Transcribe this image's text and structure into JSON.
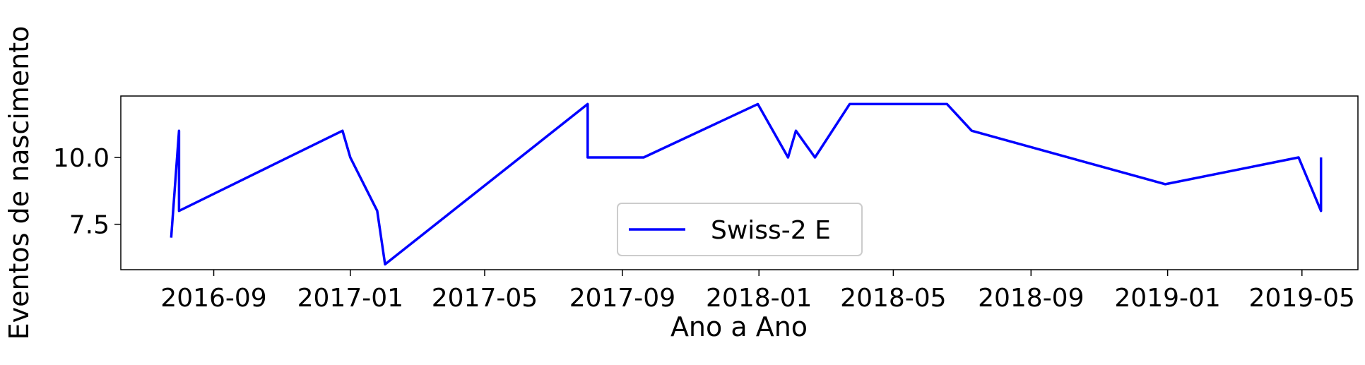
{
  "chart_data": {
    "type": "line",
    "xlabel": "Ano a Ano",
    "ylabel": "Eventos de nascimento",
    "xlim": [
      "2016-06-10",
      "2019-06-20"
    ],
    "ylim": [
      5.8,
      12.3
    ],
    "x_ticks": [
      "2016-09",
      "2017-01",
      "2017-05",
      "2017-09",
      "2018-01",
      "2018-05",
      "2018-09",
      "2019-01",
      "2019-05"
    ],
    "y_ticks": [
      7.5,
      10.0
    ],
    "y_tick_labels": [
      "7.5",
      "10.0"
    ],
    "grid": false,
    "legend": {
      "position": "lower-center"
    },
    "series": [
      {
        "name": "Swiss-2 E",
        "color": "#0000ff",
        "x": [
          "2016-07-25",
          "2016-08-01",
          "2016-08-01",
          "2016-12-25",
          "2017-01-01",
          "2017-01-25",
          "2017-02-01",
          "2017-08-01",
          "2017-08-01",
          "2017-09-20",
          "2017-12-31",
          "2018-01-27",
          "2018-02-03",
          "2018-02-20",
          "2018-03-23",
          "2018-06-18",
          "2018-07-10",
          "2018-12-30",
          "2019-04-28",
          "2019-05-18",
          "2019-05-18"
        ],
        "y": [
          7,
          11,
          8,
          11,
          10,
          8,
          6,
          12,
          10,
          10,
          12,
          10,
          11,
          10,
          12,
          12,
          11,
          9,
          10,
          8,
          10
        ]
      }
    ]
  }
}
